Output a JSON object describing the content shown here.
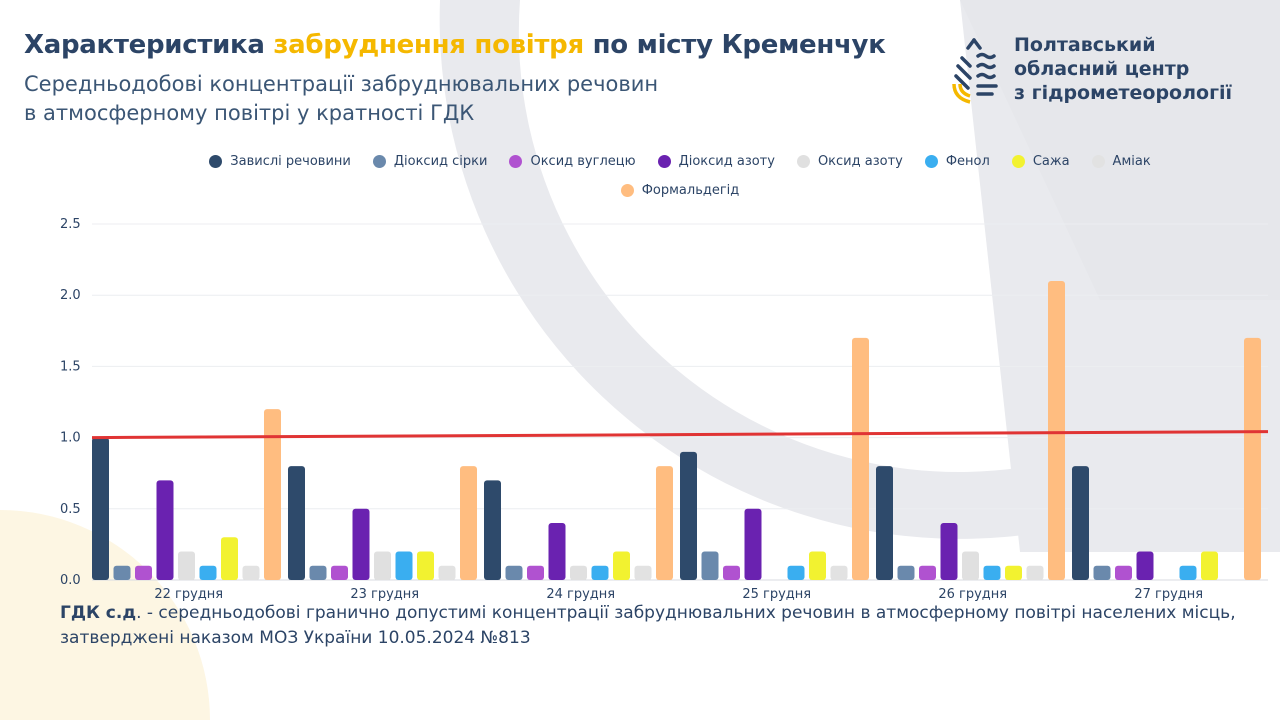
{
  "header": {
    "title_part1": "Характеристика ",
    "title_highlight": "забруднення повітря",
    "title_part2": " по місту Кременчук",
    "subtitle_line1": "Середньодобові концентрації забруднювальних речовин",
    "subtitle_line2": "в атмосферному повітрі у кратності ГДК"
  },
  "organization": {
    "line1": "Полтавський",
    "line2": "обласний центр",
    "line3": "з гідрометеорології"
  },
  "footnote": {
    "term": "ГДК с.д",
    "text": ". - середньодобові гранично допустимі концентрації забруднювальних речовин в атмосферному повітрі населених місць, затверджені наказом МОЗ України 10.05.2024 №813"
  },
  "chart_data": {
    "type": "bar",
    "title": "Середньодобові концентрації забруднювальних речовин в атмосферному повітрі у кратності ГДК",
    "xlabel": "",
    "ylabel": "",
    "ylim": [
      0,
      2.5
    ],
    "yticks": [
      "0.0",
      "0.5",
      "1.0",
      "1.5",
      "2.0",
      "2.5"
    ],
    "grid": true,
    "legend_position": "top-center",
    "categories": [
      "22 грудня",
      "23 грудня",
      "24 грудня",
      "25 грудня",
      "26 грудня",
      "27 грудня"
    ],
    "series": [
      {
        "name": "Завислі речовини",
        "color": "#2e4a6b",
        "values": [
          1.0,
          0.8,
          0.7,
          0.9,
          0.8,
          0.8
        ]
      },
      {
        "name": "Діоксид сірки",
        "color": "#6a89ac",
        "values": [
          0.1,
          0.1,
          0.1,
          0.2,
          0.1,
          0.1
        ]
      },
      {
        "name": "Оксид вуглецю",
        "color": "#b052d0",
        "values": [
          0.1,
          0.1,
          0.1,
          0.1,
          0.1,
          0.1
        ]
      },
      {
        "name": "Діоксид азоту",
        "color": "#6a22b0",
        "values": [
          0.7,
          0.5,
          0.4,
          0.5,
          0.4,
          0.2
        ]
      },
      {
        "name": "Оксид азоту",
        "color": "#e0e0e0",
        "values": [
          0.2,
          0.2,
          0.1,
          0,
          0.2,
          0
        ]
      },
      {
        "name": "Фенол",
        "color": "#3aaef0",
        "values": [
          0.1,
          0.2,
          0.1,
          0.1,
          0.1,
          0.1
        ]
      },
      {
        "name": "Сажа",
        "color": "#f2f230",
        "values": [
          0.3,
          0.2,
          0.2,
          0.2,
          0.1,
          0.2
        ]
      },
      {
        "name": "Аміак",
        "color": "#e2e2e2",
        "values": [
          0.1,
          0.1,
          0.1,
          0.1,
          0.1,
          0
        ]
      },
      {
        "name": "Формальдегід",
        "color": "#ffbd80",
        "values": [
          1.2,
          0.8,
          0.8,
          1.7,
          2.1,
          1.7
        ]
      }
    ],
    "reference_line": {
      "label": "ГДК",
      "value": 1.0,
      "color": "#e03434"
    }
  }
}
